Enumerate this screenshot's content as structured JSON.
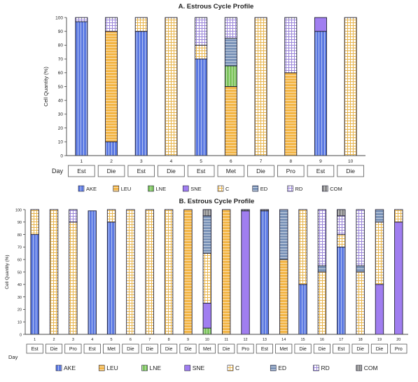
{
  "patterns": {
    "AKE": {
      "color": "#5b79e2",
      "style": "vlines"
    },
    "LEU": {
      "color": "#f3b545",
      "style": "hlines"
    },
    "LNE": {
      "color": "#7cc45c",
      "style": "vlines"
    },
    "SNE": {
      "color": "#a07ef0",
      "style": "solid"
    },
    "C": {
      "color": "#e8b44a",
      "style": "grid"
    },
    "ED": {
      "color": "#7a93b8",
      "style": "hlines"
    },
    "RD": {
      "color": "#9a85d8",
      "style": "grid"
    },
    "COM": {
      "color": "#8a8a8a",
      "style": "vlines"
    }
  },
  "chart_data": [
    {
      "type": "bar",
      "stacked": true,
      "title": "A. Estrous Cycle Profile",
      "ylabel": "Cell Quantity (%)",
      "xlabel": "Day",
      "ylim": [
        0,
        100
      ],
      "yticks": [
        "0",
        "10",
        "20",
        "30",
        "40",
        "50",
        "60",
        "70",
        "80",
        "90",
        "100"
      ],
      "categories": [
        "1",
        "2",
        "3",
        "4",
        "5",
        "6",
        "7",
        "8",
        "9",
        "10"
      ],
      "phases": [
        "Est",
        "Die",
        "Est",
        "Die",
        "Est",
        "Met",
        "Die",
        "Pro",
        "Est",
        "Die"
      ],
      "legend": [
        "AKE",
        "LEU",
        "LNE",
        "SNE",
        "C",
        "ED",
        "RD",
        "COM"
      ],
      "series": [
        {
          "name": "AKE",
          "values": [
            97,
            10,
            90,
            0,
            70,
            0,
            0,
            0,
            90,
            0
          ]
        },
        {
          "name": "LEU",
          "values": [
            0,
            80,
            0,
            0,
            0,
            50,
            0,
            60,
            0,
            0
          ]
        },
        {
          "name": "LNE",
          "values": [
            0,
            0,
            0,
            0,
            0,
            15,
            0,
            0,
            0,
            0
          ]
        },
        {
          "name": "SNE",
          "values": [
            0,
            0,
            0,
            0,
            0,
            0,
            0,
            0,
            10,
            0
          ]
        },
        {
          "name": "C",
          "values": [
            0,
            0,
            10,
            100,
            10,
            0,
            100,
            0,
            0,
            100
          ]
        },
        {
          "name": "ED",
          "values": [
            0,
            0,
            0,
            0,
            0,
            20,
            0,
            0,
            0,
            0
          ]
        },
        {
          "name": "RD",
          "values": [
            3,
            10,
            0,
            0,
            20,
            15,
            0,
            40,
            0,
            0
          ]
        },
        {
          "name": "COM",
          "values": [
            0,
            0,
            0,
            0,
            0,
            0,
            0,
            0,
            0,
            0
          ]
        }
      ]
    },
    {
      "type": "bar",
      "stacked": true,
      "title": "B. Estrous Cycle Profile",
      "ylabel": "Cell Quantity (%)",
      "xlabel": "Day",
      "ylim": [
        0,
        100
      ],
      "yticks": [
        "0",
        "10",
        "20",
        "30",
        "40",
        "50",
        "60",
        "70",
        "80",
        "90",
        "100"
      ],
      "categories": [
        "1",
        "2",
        "3",
        "4",
        "5",
        "6",
        "7",
        "8",
        "9",
        "10",
        "11",
        "12",
        "13",
        "14",
        "15",
        "16",
        "17",
        "18",
        "19",
        "20"
      ],
      "phases": [
        "Est",
        "Die",
        "Pro",
        "Est",
        "Met",
        "Die",
        "Die",
        "Die",
        "Die",
        "Met",
        "Die",
        "Pro",
        "Est",
        "Met",
        "Die",
        "Die",
        "Est",
        "Die",
        "Die",
        "Pro"
      ],
      "legend": [
        "AKE",
        "LEU",
        "LNE",
        "SNE",
        "C",
        "ED",
        "RD",
        "COM"
      ],
      "series": [
        {
          "name": "AKE",
          "values": [
            80,
            0,
            0,
            99,
            90,
            0,
            0,
            0,
            0,
            0,
            0,
            0,
            99,
            0,
            40,
            0,
            70,
            0,
            0,
            0
          ]
        },
        {
          "name": "LEU",
          "values": [
            0,
            0,
            0,
            0,
            0,
            0,
            0,
            0,
            100,
            0,
            100,
            0,
            0,
            60,
            0,
            0,
            0,
            0,
            0,
            0
          ]
        },
        {
          "name": "LNE",
          "values": [
            0,
            0,
            0,
            0,
            0,
            0,
            0,
            0,
            0,
            5,
            0,
            0,
            0,
            0,
            0,
            0,
            0,
            0,
            0,
            0
          ]
        },
        {
          "name": "SNE",
          "values": [
            0,
            0,
            0,
            0,
            0,
            0,
            0,
            0,
            0,
            20,
            0,
            99,
            0,
            0,
            0,
            0,
            0,
            0,
            40,
            90
          ]
        },
        {
          "name": "C",
          "values": [
            20,
            100,
            90,
            0,
            10,
            100,
            100,
            100,
            0,
            40,
            0,
            0,
            0,
            0,
            60,
            50,
            10,
            50,
            50,
            10
          ]
        },
        {
          "name": "ED",
          "values": [
            0,
            0,
            0,
            0,
            0,
            0,
            0,
            0,
            0,
            30,
            0,
            0,
            0,
            40,
            0,
            5,
            0,
            5,
            10,
            0
          ]
        },
        {
          "name": "RD",
          "values": [
            0,
            0,
            10,
            0,
            0,
            0,
            0,
            0,
            0,
            0,
            0,
            0,
            0,
            0,
            0,
            45,
            15,
            45,
            0,
            0
          ]
        },
        {
          "name": "COM",
          "values": [
            0,
            0,
            0,
            0,
            0,
            0,
            0,
            0,
            0,
            5,
            0,
            1,
            1,
            0,
            0,
            0,
            5,
            0,
            0,
            0
          ]
        }
      ]
    }
  ]
}
